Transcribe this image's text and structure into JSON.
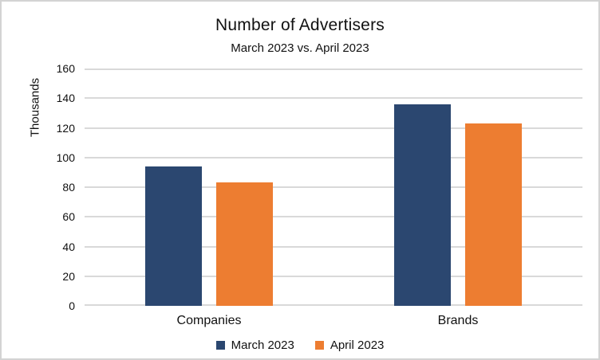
{
  "frame": {
    "background": "#FFFFFF",
    "border_color": "#D3D3D3"
  },
  "chart_data": {
    "type": "bar",
    "title": "Number of Advertisers",
    "subtitle": "March 2023 vs. April 2023",
    "ylabel": "Thousands",
    "xlabel": "",
    "categories": [
      "Companies",
      "Brands"
    ],
    "series": [
      {
        "name": "March 2023",
        "color": "#2B4770",
        "values": [
          94,
          136
        ]
      },
      {
        "name": "April 2023",
        "color": "#ED7D31",
        "values": [
          83,
          123
        ]
      }
    ],
    "ylim": [
      0,
      160
    ],
    "yticks": [
      0,
      20,
      40,
      60,
      80,
      100,
      120,
      140,
      160
    ],
    "grid": true,
    "gridline_color": "#D9D9D9",
    "axis_line_color": "#D9D9D9",
    "legend_position": "bottom"
  }
}
